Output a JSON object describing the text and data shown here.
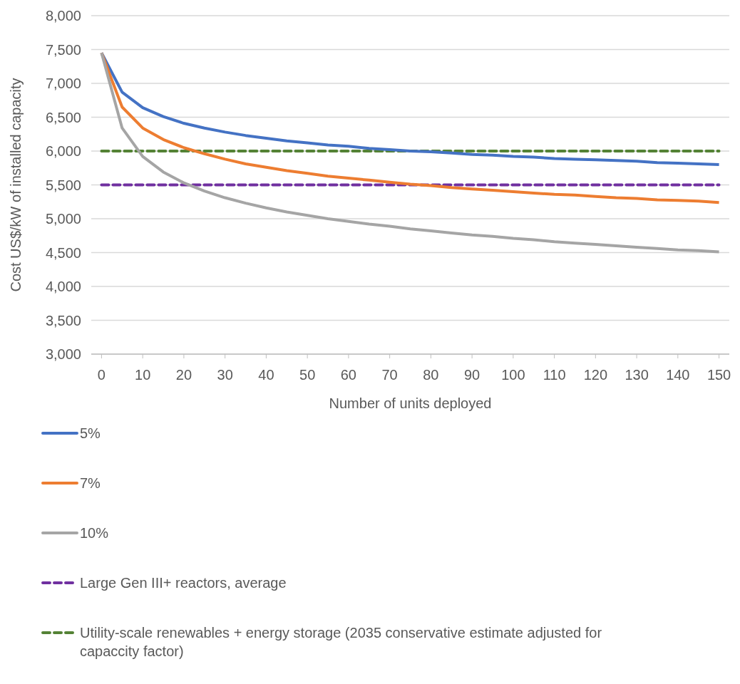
{
  "chart_data": {
    "type": "line",
    "xlabel": "Number of units deployed",
    "ylabel": "Cost US$/kW of installed capacity",
    "xlim": [
      -2.5,
      152.5
    ],
    "xticks": [
      0,
      10,
      20,
      30,
      40,
      50,
      60,
      70,
      80,
      90,
      100,
      110,
      120,
      130,
      140,
      150
    ],
    "ylim": [
      3000,
      8000
    ],
    "yticks": [
      {
        "value": 3000,
        "label": "3,000"
      },
      {
        "value": 3500,
        "label": "3,500"
      },
      {
        "value": 4000,
        "label": "4,000"
      },
      {
        "value": 4500,
        "label": "4,500"
      },
      {
        "value": 5000,
        "label": "5,000"
      },
      {
        "value": 5500,
        "label": "5,500"
      },
      {
        "value": 6000,
        "label": "6,000"
      },
      {
        "value": 6500,
        "label": "6,500"
      },
      {
        "value": 7000,
        "label": "7,000"
      },
      {
        "value": 7500,
        "label": "7,500"
      },
      {
        "value": 8000,
        "label": "8,000"
      }
    ],
    "grid": "y",
    "legend": "bottom",
    "marker": "none",
    "x": [
      0,
      5,
      10,
      15,
      20,
      25,
      30,
      35,
      40,
      45,
      50,
      55,
      60,
      65,
      70,
      75,
      80,
      85,
      90,
      95,
      100,
      105,
      110,
      115,
      120,
      125,
      130,
      135,
      140,
      145,
      150
    ],
    "series": [
      {
        "name": "5%",
        "color": "#4472c4",
        "line_style": "solid",
        "values": [
          7450,
          6870,
          6640,
          6510,
          6410,
          6340,
          6280,
          6230,
          6190,
          6150,
          6120,
          6090,
          6070,
          6040,
          6020,
          6000,
          5990,
          5970,
          5950,
          5940,
          5920,
          5910,
          5890,
          5880,
          5870,
          5860,
          5850,
          5830,
          5820,
          5810,
          5800
        ]
      },
      {
        "name": "7%",
        "color": "#ed7d31",
        "line_style": "solid",
        "values": [
          7450,
          6650,
          6340,
          6170,
          6050,
          5960,
          5880,
          5810,
          5760,
          5710,
          5670,
          5630,
          5600,
          5570,
          5540,
          5510,
          5490,
          5460,
          5440,
          5420,
          5400,
          5380,
          5360,
          5350,
          5330,
          5310,
          5300,
          5280,
          5270,
          5260,
          5240
        ]
      },
      {
        "name": "10%",
        "color": "#a5a5a5",
        "line_style": "solid",
        "values": [
          7450,
          6340,
          5920,
          5690,
          5530,
          5410,
          5310,
          5230,
          5160,
          5100,
          5050,
          5000,
          4960,
          4920,
          4890,
          4850,
          4820,
          4790,
          4760,
          4740,
          4710,
          4690,
          4660,
          4640,
          4620,
          4600,
          4580,
          4560,
          4540,
          4530,
          4510
        ]
      }
    ],
    "ref_lines": [
      {
        "axis": "y",
        "value": 5500,
        "label": "Large Gen III+ reactors, average",
        "color": "#7030a0",
        "line_style": "dashed"
      },
      {
        "axis": "y",
        "value": 6000,
        "label": "Utility-scale renewables + energy storage (2035 conservative estimate adjusted for capaccity factor)",
        "color": "#548235",
        "line_style": "dashed"
      }
    ]
  }
}
